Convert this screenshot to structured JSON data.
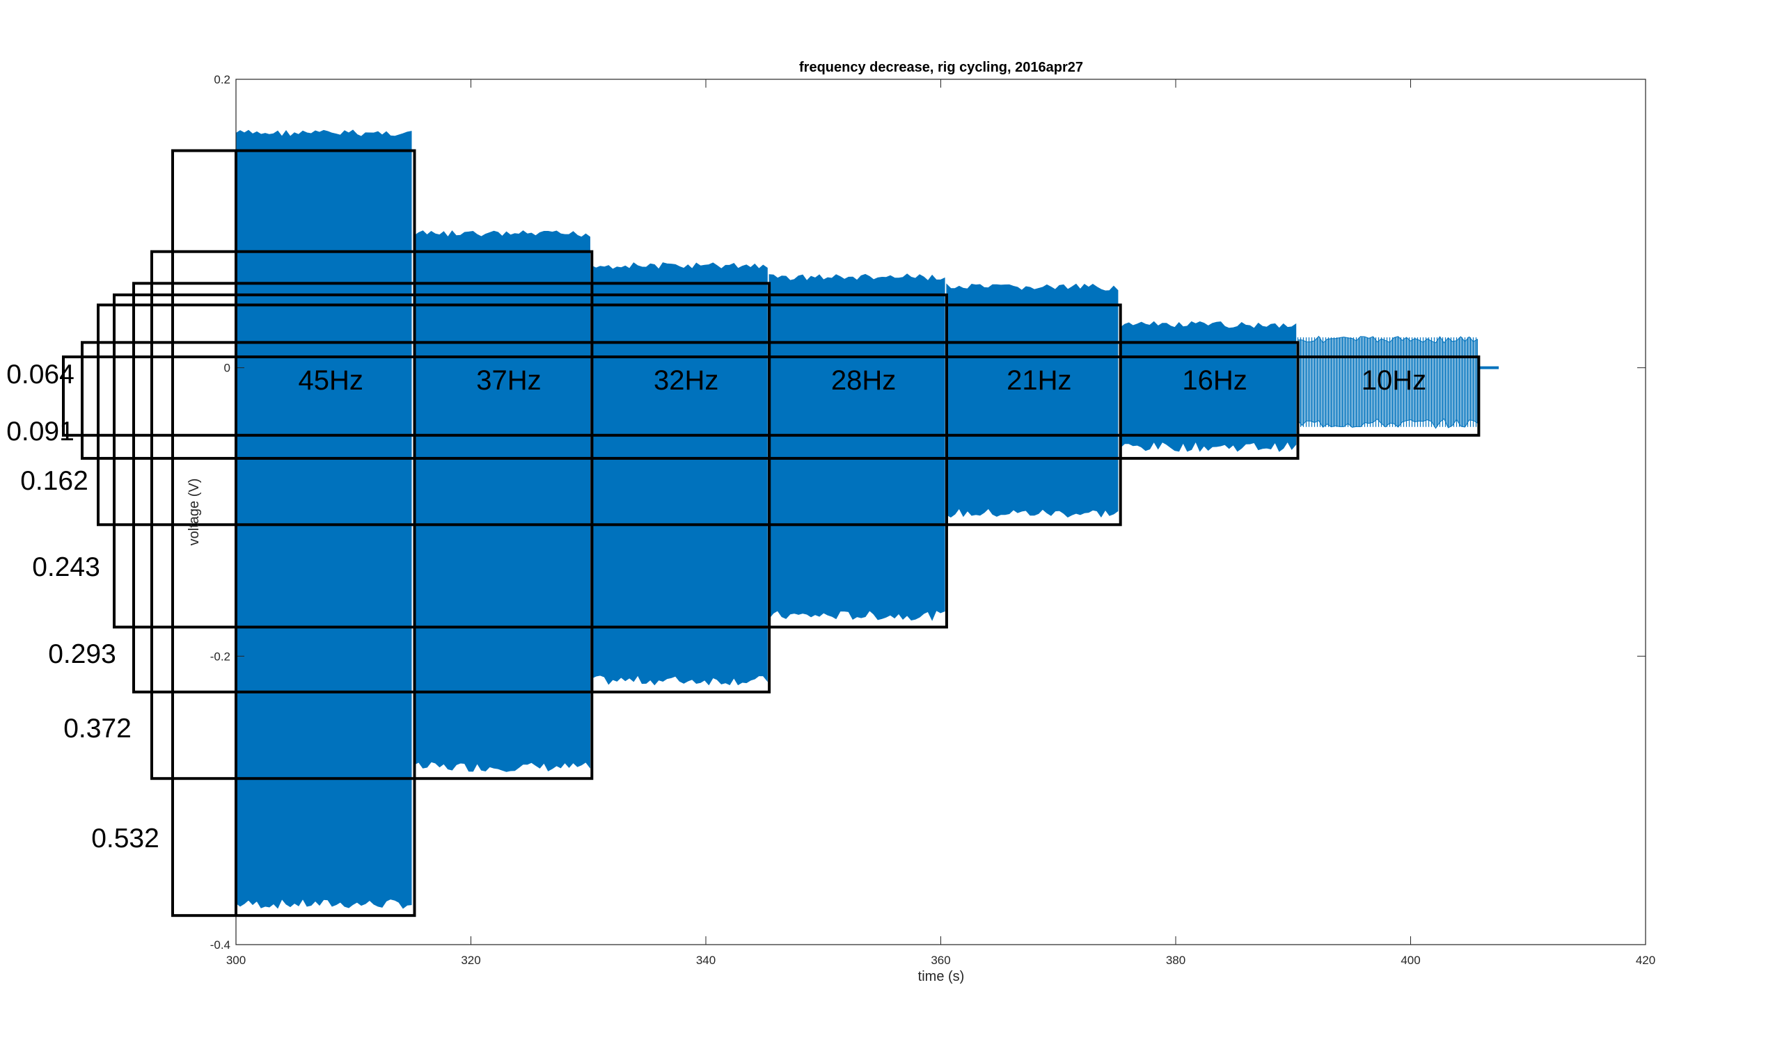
{
  "colors": {
    "series": "#0072BD",
    "box": "#000000",
    "axes": "#262626"
  },
  "chart_data": {
    "type": "line",
    "title": "frequency decrease, rig cycling, 2016apr27",
    "xlabel": "time (s)",
    "ylabel": "voltage (V)",
    "xlim": [
      300,
      420
    ],
    "ylim": [
      -0.4,
      0.2
    ],
    "xticks": [
      "300",
      "320",
      "340",
      "360",
      "380",
      "400",
      "420"
    ],
    "yticks": [
      "0.2",
      "0",
      "-0.2",
      "-0.4"
    ],
    "grid": false,
    "series": [
      {
        "segments": [
          {
            "label": "45Hz",
            "start": 300,
            "end": 315.2,
            "max": 0.165,
            "min": -0.375,
            "amplitude": "0.532"
          },
          {
            "label": "37Hz",
            "start": 315.2,
            "end": 330.3,
            "max": 0.095,
            "min": -0.28,
            "amplitude": "0.372"
          },
          {
            "label": "32Hz",
            "start": 330.3,
            "end": 345.4,
            "max": 0.073,
            "min": -0.22,
            "amplitude": "0.293"
          },
          {
            "label": "28Hz",
            "start": 345.4,
            "end": 360.5,
            "max": 0.065,
            "min": -0.175,
            "amplitude": "0.243"
          },
          {
            "label": "21Hz",
            "start": 360.5,
            "end": 375.3,
            "max": 0.058,
            "min": -0.104,
            "amplitude": "0.162"
          },
          {
            "label": "16Hz",
            "start": 375.3,
            "end": 390.4,
            "max": 0.032,
            "min": -0.058,
            "amplitude": "0.091"
          },
          {
            "label": "10Hz",
            "start": 390.4,
            "end": 405.8,
            "max": 0.022,
            "min": -0.042,
            "amplitude": "0.064"
          }
        ],
        "tail": {
          "start": 405.8,
          "end": 407.5,
          "value": 0.0
        }
      }
    ]
  }
}
